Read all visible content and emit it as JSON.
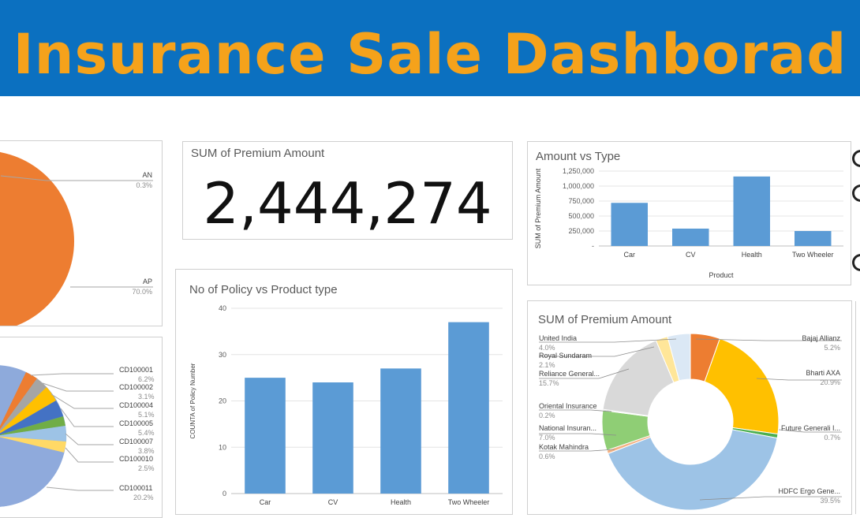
{
  "header": {
    "title": "Insurance Sale Dashborad"
  },
  "kpi": {
    "title": "SUM of Premium Amount",
    "value": "2,444,274"
  },
  "pie_top": {
    "slices": [
      {
        "name": "AN",
        "pct": "0.3%"
      },
      {
        "name": "AP",
        "pct": "70.0%"
      }
    ]
  },
  "pie_left": {
    "slices": [
      {
        "name": "CD100001",
        "pct": "6.2%"
      },
      {
        "name": "CD100002",
        "pct": "3.1%"
      },
      {
        "name": "CD100004",
        "pct": "5.1%"
      },
      {
        "name": "CD100005",
        "pct": "5.4%"
      },
      {
        "name": "CD100007",
        "pct": "3.8%"
      },
      {
        "name": "CD100010",
        "pct": "2.5%"
      },
      {
        "name": "CD100011",
        "pct": "20.2%"
      }
    ]
  },
  "chart_data": [
    {
      "type": "bar",
      "title": "Amount vs Type",
      "categories": [
        "Car",
        "CV",
        "Health",
        "Two Wheeler"
      ],
      "values": [
        720000,
        290000,
        1160000,
        250000
      ],
      "xlabel": "Product",
      "ylabel": "SUM of Premium Amount",
      "ylim": [
        0,
        1250000
      ],
      "yticks": [
        "-",
        "250,000",
        "500,000",
        "750,000",
        "1,000,000",
        "1,250,000"
      ],
      "color": "#5b9bd5",
      "grid": true
    },
    {
      "type": "bar",
      "title": "No of Policy vs Product type",
      "categories": [
        "Car",
        "CV",
        "Health",
        "Two Wheeler"
      ],
      "values": [
        25,
        24,
        27,
        37
      ],
      "xlabel": "",
      "ylabel": "COUNTA of Policy Number",
      "ylim": [
        0,
        40
      ],
      "yticks": [
        "0",
        "10",
        "20",
        "30",
        "40"
      ],
      "color": "#5b9bd5",
      "grid": true
    },
    {
      "type": "pie",
      "title": "SUM of Premium Amount",
      "donut": true,
      "slices": [
        {
          "name": "Bajaj Allianz",
          "pct": "5.2%",
          "value": 5.2,
          "color": "#ed7d31"
        },
        {
          "name": "Bharti AXA",
          "pct": "20.9%",
          "value": 20.9,
          "color": "#ffc000"
        },
        {
          "name": "Future Generali I...",
          "pct": "0.7%",
          "value": 0.7,
          "color": "#4caf50"
        },
        {
          "name": "HDFC Ergo Gene...",
          "pct": "39.5%",
          "value": 39.5,
          "color": "#9dc3e6"
        },
        {
          "name": "Kotak Mahindra",
          "pct": "0.6%",
          "value": 0.6,
          "color": "#f4b183"
        },
        {
          "name": "National Insuran...",
          "pct": "7.0%",
          "value": 7.0,
          "color": "#8fce75"
        },
        {
          "name": "Oriental Insurance",
          "pct": "0.2%",
          "value": 0.2,
          "color": "#a5a5a5"
        },
        {
          "name": "Reliance General...",
          "pct": "15.7%",
          "value": 15.7,
          "color": "#d9d9d9"
        },
        {
          "name": "Royal Sundaram",
          "pct": "2.1%",
          "value": 2.1,
          "color": "#ffe699"
        },
        {
          "name": "United India",
          "pct": "4.0%",
          "value": 4.0,
          "color": "#dbe8f5"
        }
      ]
    }
  ]
}
